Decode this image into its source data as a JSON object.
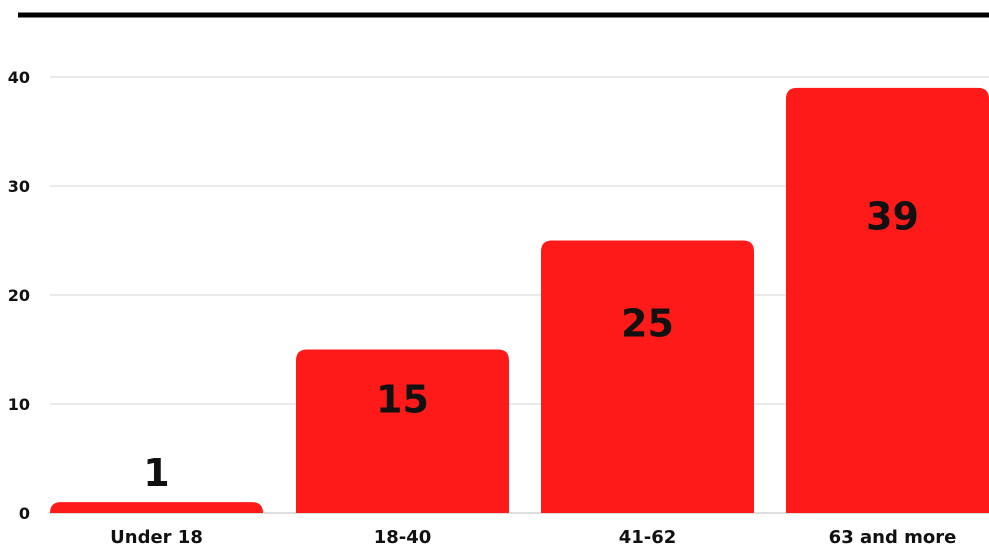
{
  "chart_data": {
    "type": "bar",
    "title": "",
    "xlabel": "",
    "ylabel": "",
    "categories": [
      "Under 18",
      "18-40",
      "41-62",
      "63 and more"
    ],
    "values": [
      1,
      15,
      25,
      39
    ],
    "data_labels": [
      "1",
      "15",
      "25",
      "39"
    ],
    "ylim": [
      0,
      40
    ],
    "yticks": [
      "0",
      "10",
      "20",
      "30",
      "40"
    ],
    "grid": true,
    "legend": "none",
    "colors": {
      "bar": "#ff1a1a",
      "top_rule": "#000000",
      "grid": "#d6d6d6",
      "text": "#111111"
    }
  }
}
